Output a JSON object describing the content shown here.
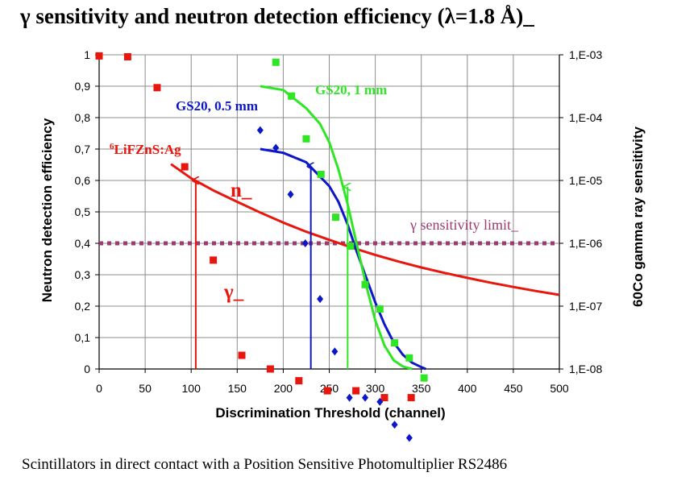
{
  "chart_data": {
    "type": "scatter",
    "title": "γ sensitivity and neutron detection efficiency (λ=1.8 Å)_",
    "caption": "Scintillators in direct contact with a Position Sensitive Photomultiplier RS2486",
    "xlabel": "Discrimination Threshold (channel)",
    "ylabel_left": "Neutron detection efficiency",
    "ylabel_right": "60Co gamma ray sensitivity",
    "xlim": [
      0,
      500
    ],
    "ylim_left": [
      0,
      1
    ],
    "ylim_right": [
      1e-08,
      0.001
    ],
    "y_right_scale": "log",
    "grid": true,
    "x_ticks": [
      "0",
      "50",
      "100",
      "150",
      "200",
      "250",
      "300",
      "350",
      "400",
      "450",
      "500"
    ],
    "y_left_ticks": [
      "0",
      "0,1",
      "0,2",
      "0,3",
      "0,4",
      "0,5",
      "0,6",
      "0,7",
      "0,8",
      "0,9",
      "1"
    ],
    "y_right_ticks": [
      "1,E-08",
      "1,E-07",
      "1,E-06",
      "1,E-05",
      "1,E-04",
      "1,E-03"
    ],
    "series": [
      {
        "name": "6LiFZnS:Ag",
        "label_sup": "6",
        "label_main": "LiFZnS:Ag",
        "color": "#e8160c",
        "efficiency_curve": {
          "x": [
            78,
            100,
            125,
            150,
            175,
            200,
            225,
            250,
            275,
            300,
            325,
            350,
            375,
            400,
            425,
            450,
            475,
            500
          ],
          "y": [
            0.652,
            0.607,
            0.567,
            0.532,
            0.498,
            0.466,
            0.437,
            0.411,
            0.386,
            0.363,
            0.342,
            0.323,
            0.306,
            0.29,
            0.275,
            0.261,
            0.248,
            0.236
          ]
        },
        "gamma_points": {
          "x": [
            0,
            31,
            63,
            93,
            124,
            155,
            186,
            217,
            248,
            279,
            310,
            339,
            370,
            401,
            432,
            463,
            494
          ],
          "y": [
            0.00096,
            0.00093,
            0.0003,
            1.65e-05,
            5.4e-07,
            1.65e-08,
            1e-08,
            6.5e-09,
            4.5e-09,
            4.5e-09,
            3.5e-09,
            3.5e-09,
            2.6e-09,
            1.9e-09,
            1.9e-09,
            1.2e-09,
            1.2e-09
          ]
        },
        "threshold_x": 105,
        "threshold_efficiency": 0.6
      },
      {
        "name": "GS20, 0.5 mm",
        "color": "#0b17c8",
        "efficiency_curve": {
          "x": [
            175,
            200,
            225,
            250,
            260,
            270,
            280,
            290,
            300,
            310,
            320,
            330,
            340,
            350,
            355
          ],
          "y": [
            0.7,
            0.688,
            0.658,
            0.582,
            0.532,
            0.46,
            0.372,
            0.292,
            0.212,
            0.142,
            0.085,
            0.045,
            0.02,
            0.006,
            0.0
          ]
        },
        "gamma_points": {
          "x": [
            175,
            192,
            208,
            224,
            240,
            256,
            272,
            289,
            305,
            321,
            337
          ],
          "y": [
            6.3e-05,
            3.3e-05,
            6e-06,
            1e-06,
            1.3e-07,
            1.9e-08,
            3.5e-09,
            3.5e-09,
            3e-09,
            1.3e-09,
            8e-10
          ]
        },
        "threshold_x": 230,
        "threshold_efficiency": 0.645
      },
      {
        "name": "GS20, 1 mm",
        "color": "#2fe625",
        "efficiency_curve": {
          "x": [
            175,
            200,
            225,
            240,
            250,
            260,
            270,
            280,
            290,
            300,
            310,
            320,
            330,
            340
          ],
          "y": [
            0.9,
            0.888,
            0.83,
            0.78,
            0.722,
            0.635,
            0.525,
            0.395,
            0.268,
            0.155,
            0.075,
            0.028,
            0.008,
            0.0
          ]
        },
        "gamma_points": {
          "x": [
            192,
            209,
            225,
            241,
            257,
            273,
            289,
            305,
            321,
            337,
            353
          ],
          "y": [
            0.00076,
            0.00022,
            4.6e-05,
            1.25e-05,
            2.6e-06,
            9e-07,
            2.2e-07,
            9e-08,
            2.6e-08,
            1.5e-08,
            7.2e-09
          ]
        },
        "threshold_x": 270,
        "threshold_efficiency": 0.58
      },
      {
        "name": "γ sensitivity limit_",
        "color": "#9b3b72",
        "value": 1e-06
      }
    ],
    "annotations": {
      "n_label": "n_",
      "gamma_label": "γ_"
    }
  }
}
